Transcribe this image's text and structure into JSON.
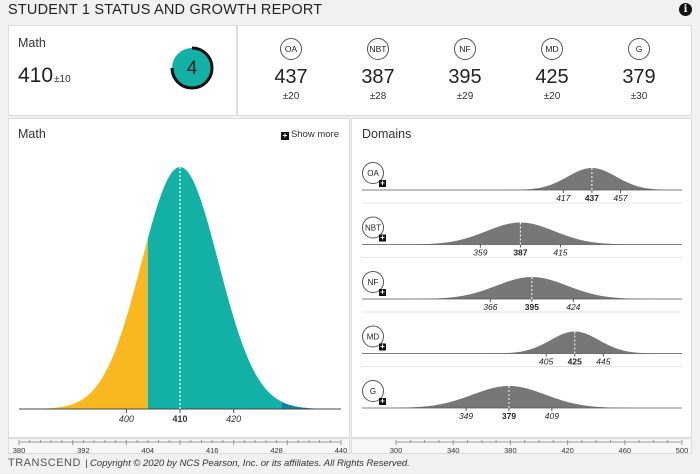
{
  "title": "STUDENT 1 STATUS AND GROWTH REPORT",
  "info_icon": "i",
  "summary": {
    "subject": "Math",
    "score": "410",
    "error": "±10",
    "level": "4"
  },
  "domains_summary": [
    {
      "code": "OA",
      "score": "437",
      "error": "±20"
    },
    {
      "code": "NBT",
      "score": "387",
      "error": "±28"
    },
    {
      "code": "NF",
      "score": "395",
      "error": "±29"
    },
    {
      "code": "MD",
      "score": "425",
      "error": "±20"
    },
    {
      "code": "G",
      "score": "379",
      "error": "±30"
    }
  ],
  "main_chart": {
    "title": "Math",
    "show_more": "Show more",
    "score": 410,
    "range_labels": [
      "400",
      "410",
      "420"
    ],
    "band_colors": [
      "#e8820c",
      "#f9b81f",
      "#13b0a5",
      "#0f7fa5"
    ],
    "band_breaks": [
      384,
      404,
      429
    ],
    "axis": {
      "min": 380,
      "max": 440,
      "ticks": [
        "380",
        "392",
        "404",
        "416",
        "428",
        "440"
      ]
    }
  },
  "domains_chart": {
    "title": "Domains",
    "rows": [
      {
        "code": "OA",
        "score": 437,
        "low": "417",
        "mid": "437",
        "high": "457"
      },
      {
        "code": "NBT",
        "score": 387,
        "low": "359",
        "mid": "387",
        "high": "415"
      },
      {
        "code": "NF",
        "score": 395,
        "low": "366",
        "mid": "395",
        "high": "424"
      },
      {
        "code": "MD",
        "score": 425,
        "low": "405",
        "mid": "425",
        "high": "445"
      },
      {
        "code": "G",
        "score": 379,
        "low": "349",
        "mid": "379",
        "high": "409"
      }
    ],
    "axis": {
      "min": 300,
      "max": 500,
      "ticks": [
        "300",
        "340",
        "380",
        "420",
        "460",
        "500"
      ]
    }
  },
  "footer": {
    "logo": "TRANSCEND",
    "copyright": "| Copyright © 2020 by NCS Pearson, Inc. or its affiliates. All Rights Reserved."
  }
}
